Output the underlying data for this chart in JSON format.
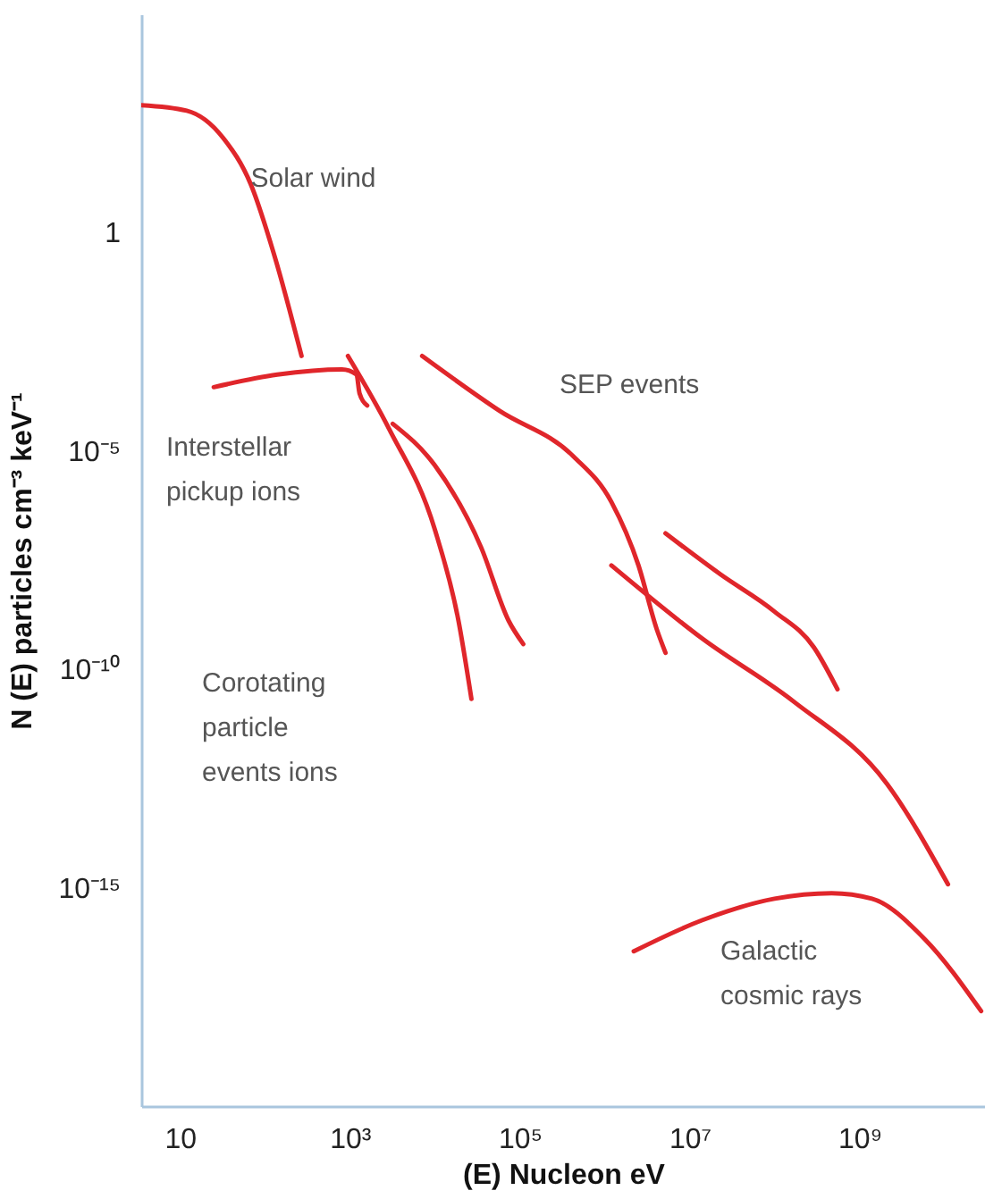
{
  "chart_data": {
    "type": "line",
    "xlabel": "(E) Nucleon eV",
    "ylabel": "N (E) particles cm⁻³ keV⁻¹",
    "log": "xy",
    "grid": false,
    "marker": "none",
    "line_style": "solid",
    "xlim": [
      3.5,
      30000000000
    ],
    "ylim": [
      1e-20,
      100000
    ],
    "xticks": [
      10,
      {
        "value": 1000,
        "label": "10³"
      },
      {
        "value": 100000,
        "label": "10⁵"
      },
      {
        "value": 10000000,
        "label": "10⁷"
      },
      {
        "value": 1000000000,
        "label": "10⁹"
      }
    ],
    "yticks": [
      1,
      {
        "value": 1e-05,
        "label": "10⁻⁵"
      },
      {
        "value": 1e-10,
        "label": "10⁻¹⁰"
      },
      {
        "value": 1e-15,
        "label": "10⁻¹⁵"
      }
    ],
    "series": [
      {
        "color": "#e0262b",
        "x": [
          3.5,
          12,
          32,
          68,
          130,
          270
        ],
        "values": [
          830,
          620,
          150,
          13,
          0.29,
          0.0015
        ]
      },
      {
        "color": "#e0262b",
        "x": [
          25,
          140,
          810,
          1200,
          1300,
          1600
        ],
        "values": [
          0.00029,
          0.00056,
          0.00074,
          0.00056,
          0.00021,
          0.00011
        ]
      },
      {
        "color": "#e0262b",
        "x": [
          950,
          2900,
          10000,
          19000,
          27000
        ],
        "values": [
          0.0015,
          3.2e-05,
          1.6e-07,
          1.3e-09,
          2.1e-11
        ]
      },
      {
        "color": "#e0262b",
        "x": [
          3200,
          10000,
          35000,
          74000,
          110000
        ],
        "values": [
          4.2e-05,
          4.7e-06,
          6.3e-08,
          1.3e-09,
          3.8e-10
        ]
      },
      {
        "color": "#e0262b",
        "x": [
          7100,
          58000,
          430000,
          1200000,
          2500000,
          4100000,
          5200000
        ],
        "values": [
          0.0015,
          8.3e-05,
          7.5e-06,
          6.8e-07,
          2.4e-08,
          8.3e-10,
          2.4e-10
        ]
      },
      {
        "color": "#e0262b",
        "x": [
          5200000,
          23000000,
          100000000,
          290000000,
          550000000
        ],
        "values": [
          1.3e-07,
          1.5e-08,
          2.1e-09,
          3.2e-10,
          3.5e-11
        ]
      },
      {
        "color": "#e0262b",
        "x": [
          1200000,
          14000000,
          170000000,
          2100000000,
          11000000000
        ],
        "values": [
          2.4e-08,
          5.1e-10,
          1.8e-11,
          2.4e-13,
          1.2e-15
        ]
      },
      {
        "color": "#e0262b",
        "x": [
          2200000,
          14000000,
          100000000,
          470000000,
          1400000000,
          5800000000,
          27000000000
        ],
        "values": [
          3.5e-17,
          1.8e-16,
          5.6e-16,
          7.5e-16,
          5.6e-16,
          6.8e-17,
          1.5e-18
        ]
      }
    ],
    "annotations": [
      {
        "text": "Solar wind",
        "x": 68,
        "y": 18
      },
      "Interstellar\npickup ions",
      "Corotating\nparticle\nevents ions",
      "SEP events",
      "Galactic\ncosmic rays"
    ]
  }
}
